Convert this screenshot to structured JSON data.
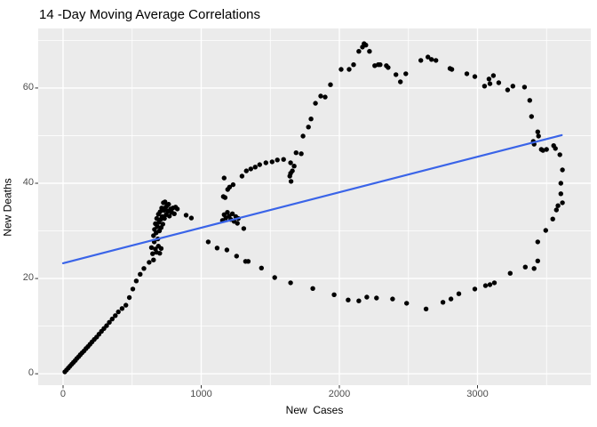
{
  "header": {
    "title": "14 -Day Moving Average Correlations"
  },
  "chart_data": {
    "type": "scatter",
    "title": "14 -Day Moving Average Correlations",
    "xlabel": "New  Cases",
    "ylabel": "New Deaths",
    "xlim": [
      -180,
      3820
    ],
    "ylim": [
      -2.4,
      72.5
    ],
    "x_major_ticks": [
      0,
      1000,
      2000,
      3000
    ],
    "x_minor_ticks": [
      500,
      1500,
      2500,
      3500
    ],
    "y_major_ticks": [
      0,
      20,
      40,
      60
    ],
    "y_minor_ticks": [
      10,
      30,
      50,
      70
    ],
    "grid": true,
    "legend": "none",
    "panel_bg_color": "#ebebeb",
    "grid_color": "#ffffff",
    "point_color": "#000000",
    "tick_label_color": "#4d4d4d",
    "tick_mark_color": "#333333",
    "trend_line": {
      "color": "#3a64e8",
      "points": [
        [
          0,
          23.2
        ],
        [
          3610,
          50.1
        ]
      ]
    },
    "points": [
      [
        13,
        0.4
      ],
      [
        25,
        0.8
      ],
      [
        38,
        1.2
      ],
      [
        50,
        1.6
      ],
      [
        63,
        2.0
      ],
      [
        75,
        2.4
      ],
      [
        88,
        2.8
      ],
      [
        100,
        3.2
      ],
      [
        113,
        3.6
      ],
      [
        125,
        4.0
      ],
      [
        138,
        4.4
      ],
      [
        152,
        4.8
      ],
      [
        166,
        5.3
      ],
      [
        180,
        5.7
      ],
      [
        195,
        6.2
      ],
      [
        210,
        6.7
      ],
      [
        226,
        7.2
      ],
      [
        243,
        7.7
      ],
      [
        260,
        8.3
      ],
      [
        278,
        8.9
      ],
      [
        296,
        9.5
      ],
      [
        315,
        10.1
      ],
      [
        335,
        10.8
      ],
      [
        356,
        11.5
      ],
      [
        378,
        12.2
      ],
      [
        400,
        13.0
      ],
      [
        427,
        13.7
      ],
      [
        455,
        14.4
      ],
      [
        480,
        16.0
      ],
      [
        505,
        17.8
      ],
      [
        530,
        19.5
      ],
      [
        558,
        20.9
      ],
      [
        585,
        22.1
      ],
      [
        623,
        23.4
      ],
      [
        655,
        23.9
      ],
      [
        648,
        25.2
      ],
      [
        640,
        26.5
      ],
      [
        660,
        27.7
      ],
      [
        668,
        26.2
      ],
      [
        676,
        25.5
      ],
      [
        700,
        25.3
      ],
      [
        690,
        26.8
      ],
      [
        710,
        26.3
      ],
      [
        655,
        29.0
      ],
      [
        662,
        30.3
      ],
      [
        668,
        31.5
      ],
      [
        674,
        29.6
      ],
      [
        678,
        32.6
      ],
      [
        682,
        30.9
      ],
      [
        686,
        28.3
      ],
      [
        690,
        33.5
      ],
      [
        694,
        31.8
      ],
      [
        698,
        30.0
      ],
      [
        702,
        34.0
      ],
      [
        706,
        32.4
      ],
      [
        710,
        30.7
      ],
      [
        714,
        34.8
      ],
      [
        718,
        33.0
      ],
      [
        722,
        31.4
      ],
      [
        726,
        35.9
      ],
      [
        730,
        34.3
      ],
      [
        734,
        32.6
      ],
      [
        738,
        36.1
      ],
      [
        742,
        34.9
      ],
      [
        746,
        33.4
      ],
      [
        752,
        35.3
      ],
      [
        758,
        34.1
      ],
      [
        764,
        35.6
      ],
      [
        770,
        33.1
      ],
      [
        778,
        34.6
      ],
      [
        786,
        33.9
      ],
      [
        795,
        34.8
      ],
      [
        805,
        33.6
      ],
      [
        814,
        35.0
      ],
      [
        827,
        34.6
      ],
      [
        891,
        33.3
      ],
      [
        929,
        32.7
      ],
      [
        1154,
        32.2
      ],
      [
        1166,
        33.4
      ],
      [
        1178,
        32.7
      ],
      [
        1190,
        33.9
      ],
      [
        1202,
        33.1
      ],
      [
        1214,
        32.4
      ],
      [
        1226,
        33.6
      ],
      [
        1238,
        32.0
      ],
      [
        1250,
        33.0
      ],
      [
        1262,
        31.6
      ],
      [
        1269,
        32.6
      ],
      [
        1308,
        30.5
      ],
      [
        1160,
        37.2
      ],
      [
        1173,
        37.0
      ],
      [
        1192,
        38.7
      ],
      [
        1205,
        39.2
      ],
      [
        1231,
        39.7
      ],
      [
        1166,
        41.1
      ],
      [
        1295,
        41.5
      ],
      [
        1327,
        42.6
      ],
      [
        1359,
        43.0
      ],
      [
        1391,
        43.4
      ],
      [
        1423,
        43.9
      ],
      [
        1468,
        44.3
      ],
      [
        1513,
        44.5
      ],
      [
        1551,
        44.9
      ],
      [
        1596,
        45.0
      ],
      [
        1647,
        44.3
      ],
      [
        1673,
        43.6
      ],
      [
        1660,
        42.6
      ],
      [
        1647,
        42.1
      ],
      [
        1641,
        41.5
      ],
      [
        1650,
        40.4
      ],
      [
        1687,
        46.4
      ],
      [
        1724,
        46.2
      ],
      [
        1737,
        49.9
      ],
      [
        1776,
        51.8
      ],
      [
        1795,
        53.5
      ],
      [
        1827,
        56.8
      ],
      [
        1865,
        58.3
      ],
      [
        1897,
        58.1
      ],
      [
        1936,
        60.7
      ],
      [
        2013,
        63.9
      ],
      [
        2071,
        63.9
      ],
      [
        2103,
        64.9
      ],
      [
        2141,
        67.7
      ],
      [
        2167,
        68.6
      ],
      [
        2179,
        69.3
      ],
      [
        2192,
        69.0
      ],
      [
        2218,
        67.7
      ],
      [
        2256,
        64.7
      ],
      [
        2282,
        64.9
      ],
      [
        2295,
        64.9
      ],
      [
        2340,
        64.7
      ],
      [
        2353,
        64.3
      ],
      [
        2410,
        62.8
      ],
      [
        2442,
        61.3
      ],
      [
        2481,
        63.0
      ],
      [
        2590,
        65.8
      ],
      [
        2641,
        66.5
      ],
      [
        2667,
        66.0
      ],
      [
        2699,
        65.8
      ],
      [
        2801,
        64.1
      ],
      [
        2814,
        63.9
      ],
      [
        2923,
        63.0
      ],
      [
        2981,
        62.4
      ],
      [
        3051,
        60.4
      ],
      [
        3083,
        61.9
      ],
      [
        3090,
        60.9
      ],
      [
        3115,
        62.6
      ],
      [
        3154,
        61.1
      ],
      [
        3218,
        59.6
      ],
      [
        3256,
        60.4
      ],
      [
        3340,
        60.2
      ],
      [
        3378,
        57.4
      ],
      [
        3391,
        54.0
      ],
      [
        3404,
        48.8
      ],
      [
        3410,
        48.2
      ],
      [
        3436,
        50.8
      ],
      [
        3442,
        49.9
      ],
      [
        3462,
        47.1
      ],
      [
        3474,
        46.9
      ],
      [
        3500,
        47.1
      ],
      [
        3551,
        47.9
      ],
      [
        3564,
        47.3
      ],
      [
        3596,
        46.0
      ],
      [
        3615,
        42.8
      ],
      [
        3603,
        40.0
      ],
      [
        3603,
        37.8
      ],
      [
        3583,
        35.3
      ],
      [
        3615,
        35.9
      ],
      [
        3571,
        34.4
      ],
      [
        3545,
        32.5
      ],
      [
        3494,
        30.1
      ],
      [
        3436,
        27.7
      ],
      [
        3436,
        23.7
      ],
      [
        3410,
        22.1
      ],
      [
        3346,
        22.4
      ],
      [
        3237,
        21.1
      ],
      [
        3122,
        19.1
      ],
      [
        3090,
        18.7
      ],
      [
        3058,
        18.5
      ],
      [
        2981,
        17.8
      ],
      [
        2865,
        16.8
      ],
      [
        2808,
        15.7
      ],
      [
        2750,
        15.0
      ],
      [
        2628,
        13.6
      ],
      [
        2487,
        14.8
      ],
      [
        2385,
        15.7
      ],
      [
        2269,
        15.9
      ],
      [
        2199,
        16.1
      ],
      [
        2141,
        15.3
      ],
      [
        2064,
        15.5
      ],
      [
        1962,
        16.6
      ],
      [
        1808,
        17.9
      ],
      [
        1647,
        19.1
      ],
      [
        1532,
        20.2
      ],
      [
        1436,
        22.2
      ],
      [
        1340,
        23.6
      ],
      [
        1321,
        23.6
      ],
      [
        1256,
        24.7
      ],
      [
        1186,
        26.0
      ],
      [
        1115,
        26.4
      ],
      [
        1051,
        27.7
      ]
    ]
  }
}
